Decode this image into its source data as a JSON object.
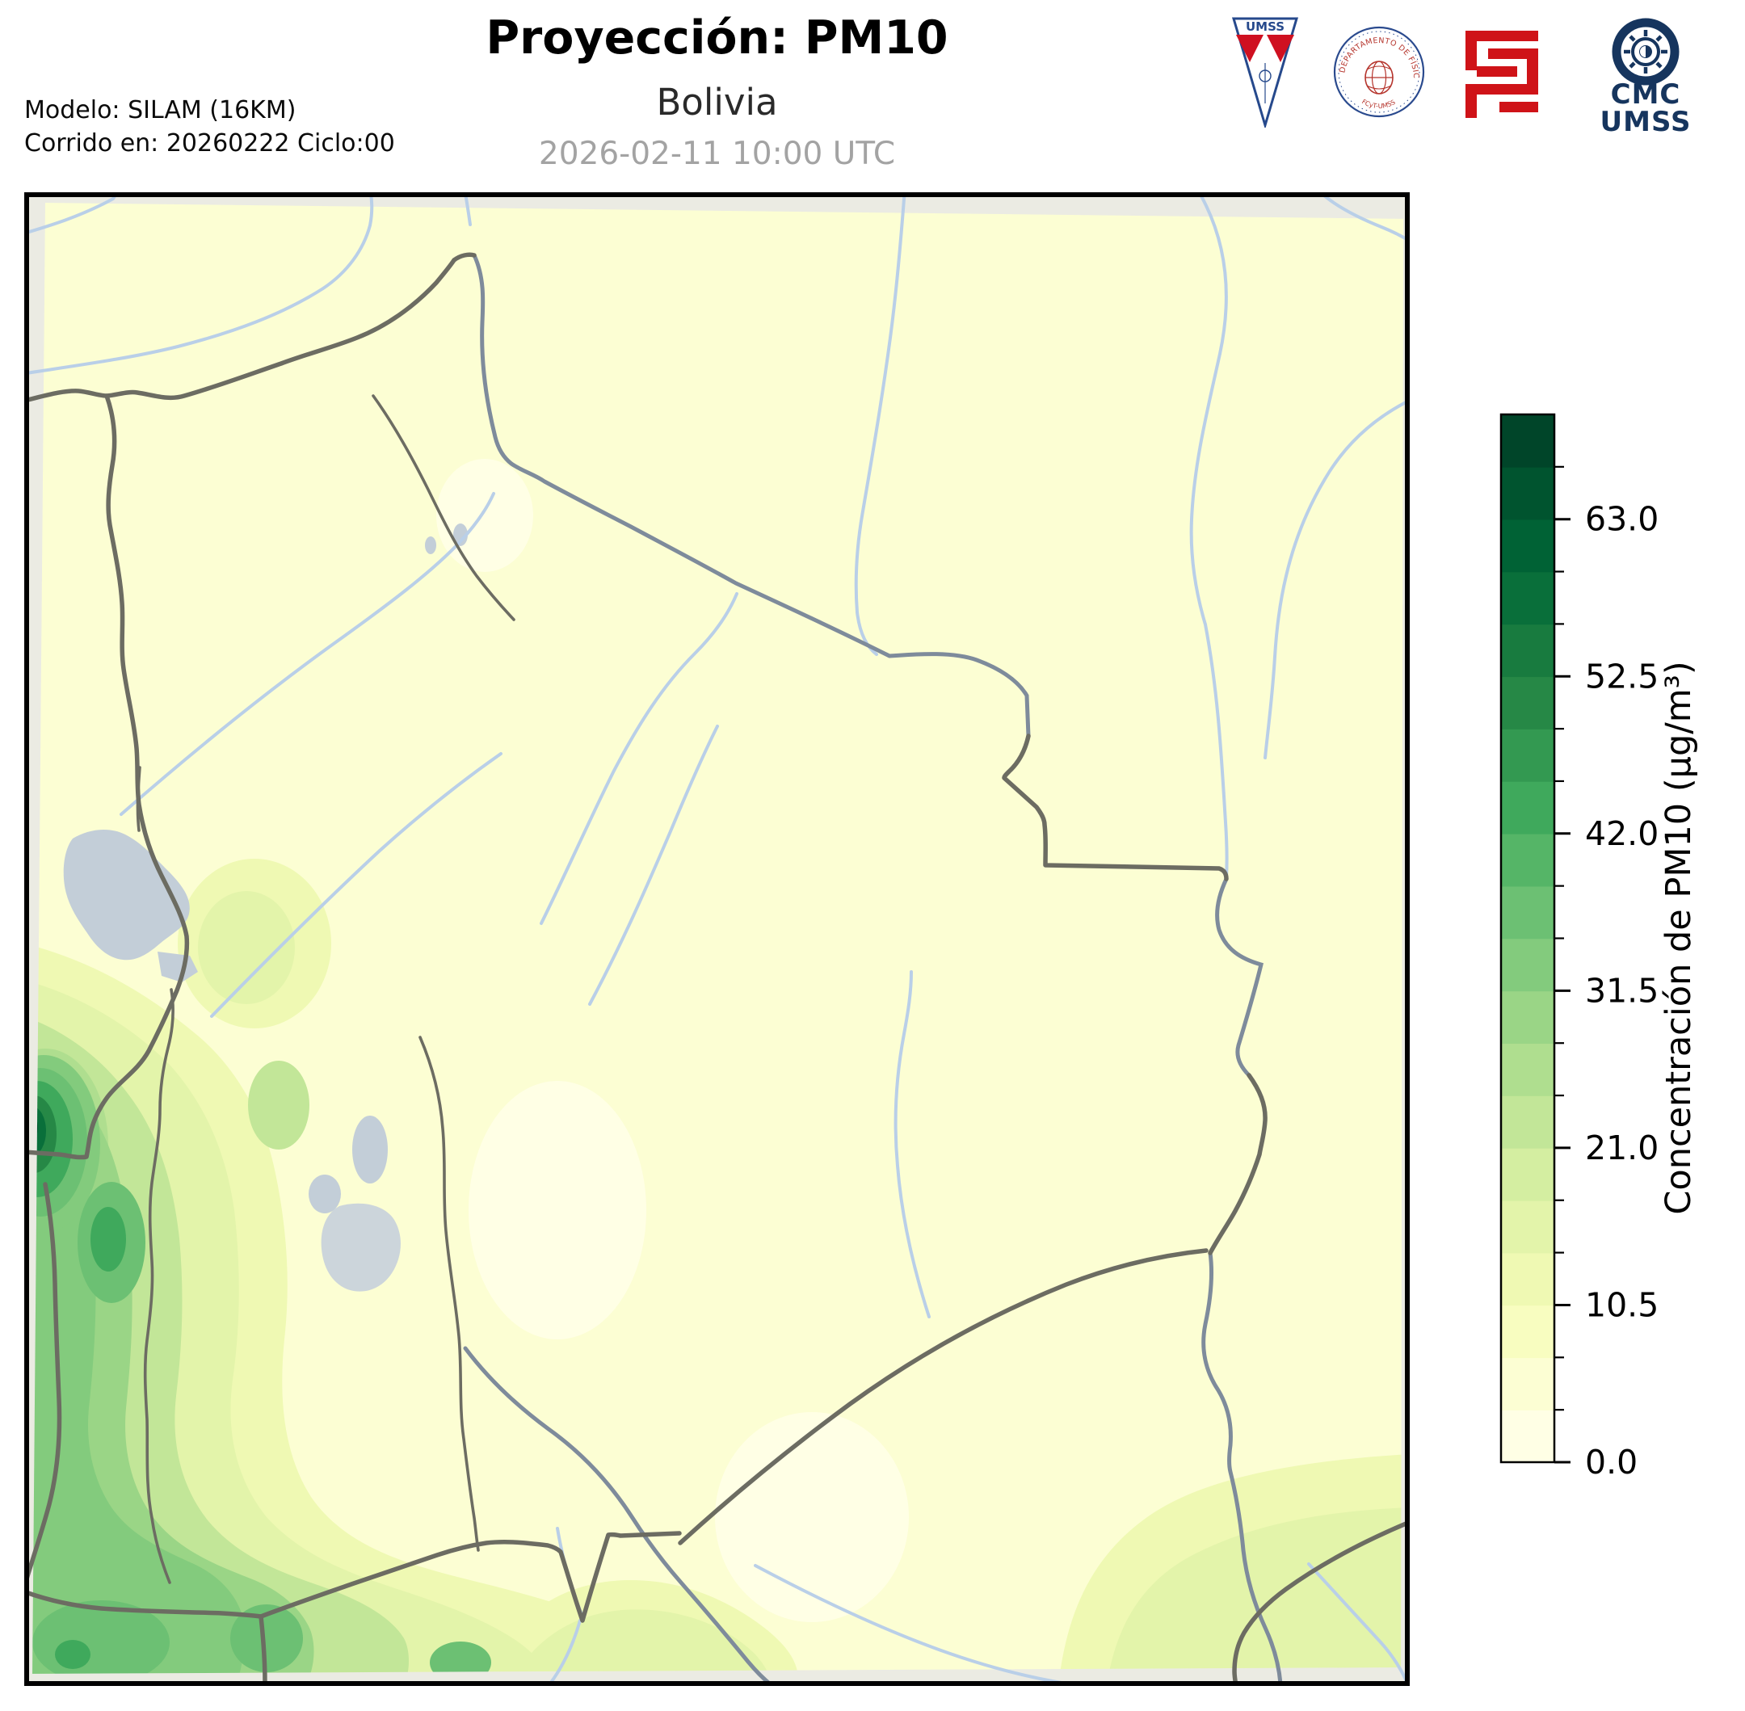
{
  "figure": {
    "title": "Proyección: PM10",
    "subtitle": "Bolivia",
    "timestamp": "2026-02-11 10:00 UTC",
    "model_info_line1": "Modelo: SILAM (16KM)",
    "model_info_line2": "Corrido en: 20260222 Ciclo:00"
  },
  "logos": {
    "umss_pennant": {
      "label": "UMSS"
    },
    "fisica_seal": {
      "arc_text": "DEPARTAMENTO DE FÍSICA",
      "footer_text": "FCyT-UMSS"
    },
    "fcyt_mark": {
      "color": "#cf1318"
    },
    "cmc_umss": {
      "line1": "CMC",
      "line2": "UMSS",
      "color": "#16355e"
    }
  },
  "colorbar": {
    "label": "Concentración de PM10 (µg/m³)",
    "vmin": 0,
    "vmax": 70,
    "step": 3.5,
    "major_ticks": [
      0,
      10.5,
      21,
      31.5,
      42,
      52.5,
      63
    ],
    "major_tick_labels": [
      "0.0",
      "10.5",
      "21.0",
      "31.5",
      "42.0",
      "52.5",
      "63.0"
    ],
    "segment_colors_bottom_to_top": [
      "#ffffe5",
      "#fcfed3",
      "#f8fdc0",
      "#eff9b3",
      "#e3f4aa",
      "#d4eea1",
      "#c2e698",
      "#afde8f",
      "#9ad586",
      "#83cb7d",
      "#6cc073",
      "#55b567",
      "#3fa95c",
      "#339951",
      "#268846",
      "#187b3f",
      "#096f3a",
      "#006235",
      "#00542f",
      "#004529"
    ]
  },
  "map": {
    "region": "Bolivia",
    "colors": {
      "background": "#fbfcdc",
      "out-of-domain": "#ebebe3",
      "land-border": "#6c6c62",
      "river-border": "#7e8b9b",
      "river": "#b9cfe8",
      "lake": "#c3ced8",
      "lake-salt": "#ccd5db",
      "frame": "#000000"
    }
  }
}
